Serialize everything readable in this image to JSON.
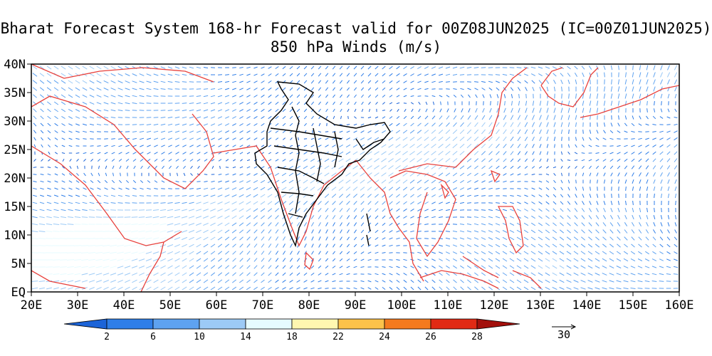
{
  "title_line1": "Bharat Forecast System 168-hr Forecast valid for 00Z08JUN2025 (IC=00Z01JUN2025)",
  "title_line2": "850 hPa Winds (m/s)",
  "map": {
    "lon_range": [
      20,
      160
    ],
    "lat_range": [
      0,
      40
    ],
    "lon_ticks": [
      "20E",
      "30E",
      "40E",
      "50E",
      "60E",
      "70E",
      "80E",
      "90E",
      "100E",
      "110E",
      "120E",
      "130E",
      "140E",
      "150E",
      "160E"
    ],
    "lat_ticks": [
      "EQ",
      "5N",
      "10N",
      "15N",
      "20N",
      "25N",
      "30N",
      "35N",
      "40N"
    ],
    "country_border_color": "#e8413c",
    "india_state_border_color": "#000000"
  },
  "colorbar": {
    "labels": [
      "2",
      "6",
      "10",
      "14",
      "18",
      "22",
      "24",
      "26",
      "28"
    ],
    "colors": [
      "#1c64d8",
      "#2f7ee8",
      "#5ea2f0",
      "#9ccaf6",
      "#e6fbff",
      "#fff7b0",
      "#fcc24a",
      "#f47a1e",
      "#e12a14",
      "#a3100c"
    ]
  },
  "reference_vector": {
    "label": "30"
  }
}
